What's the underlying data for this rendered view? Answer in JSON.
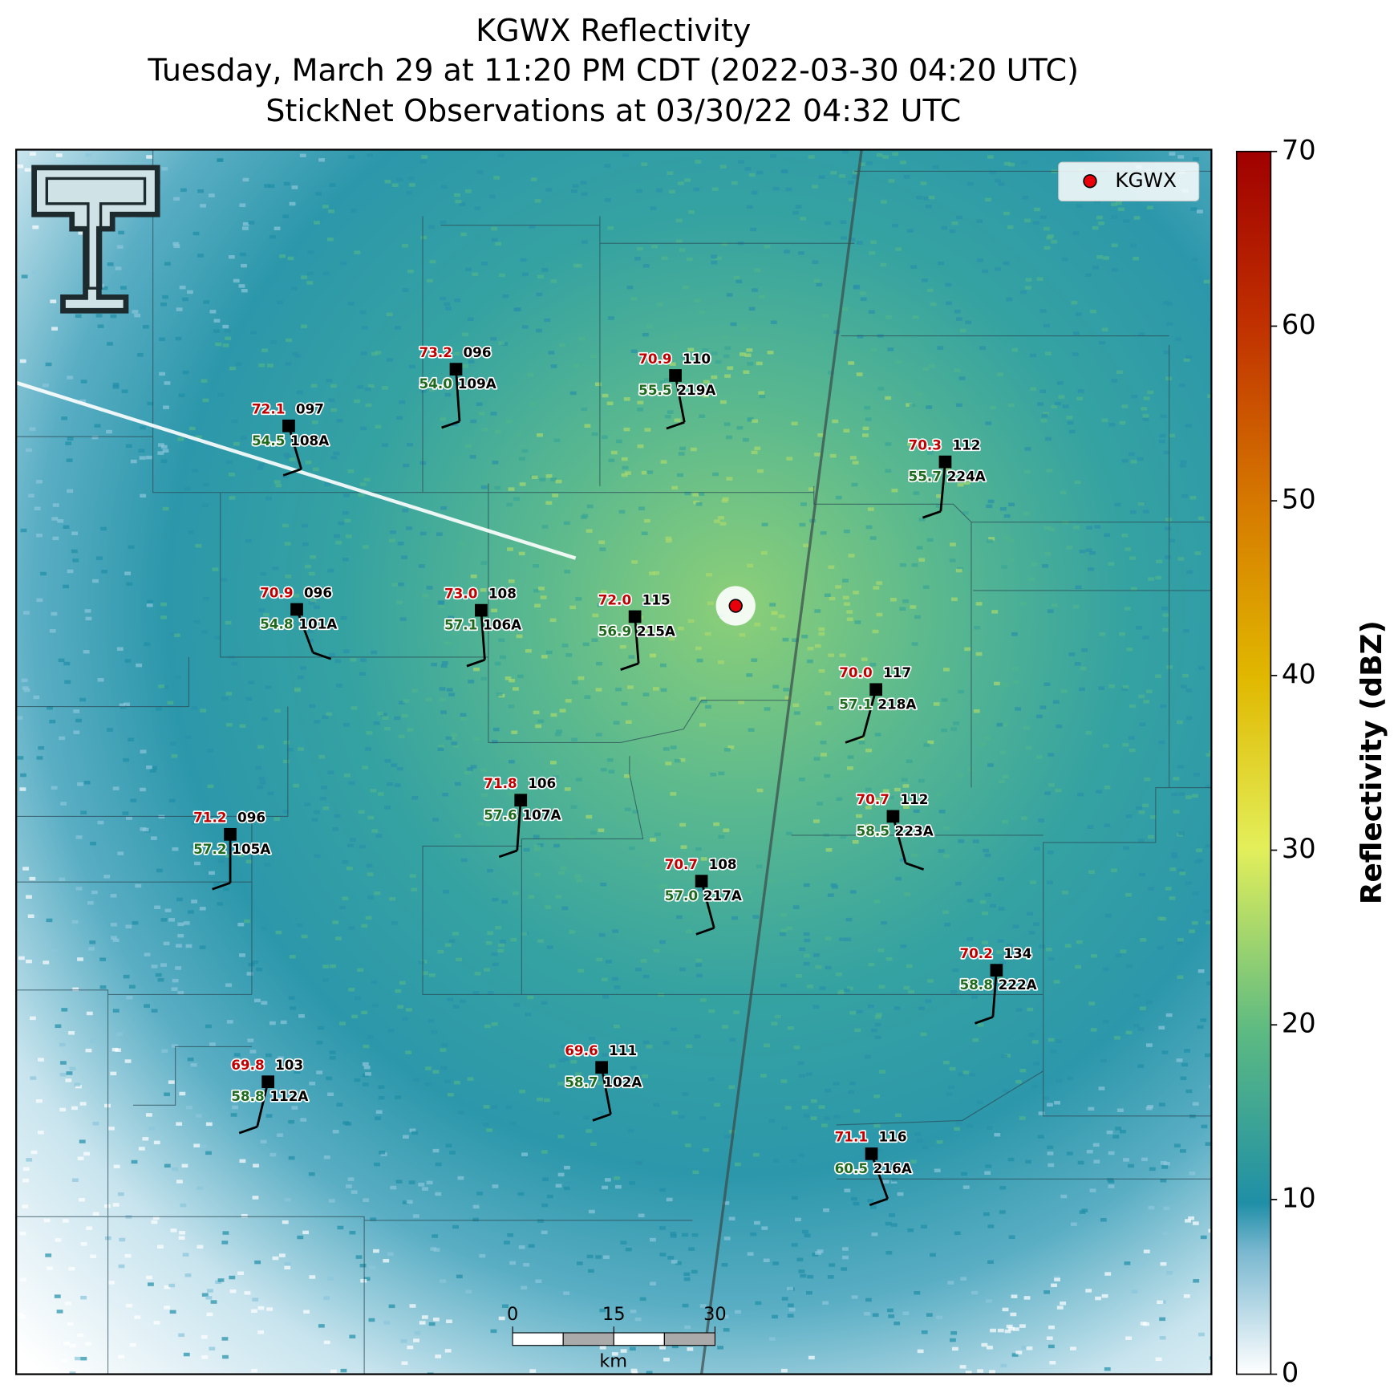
{
  "header": {
    "title": "KGWX Reflectivity",
    "subtitle": "Tuesday, March 29 at 11:20 PM CDT (2022-03-30 04:20 UTC)",
    "subtitle2": "StickNet Observations at 03/30/22 04:32 UTC"
  },
  "legend": {
    "label": "KGWX"
  },
  "colorbar": {
    "label": "Reflectivity (dBZ)",
    "lim": [
      0,
      70
    ],
    "ticks": [
      0,
      10,
      20,
      30,
      40,
      50,
      60,
      70
    ]
  },
  "scale_bar": {
    "ticks": [
      0,
      15,
      30
    ],
    "unit": "km"
  },
  "stations": [
    {
      "temp": "72.1",
      "dew": "54.5",
      "pressure": "097",
      "id": "108A"
    },
    {
      "temp": "73.2",
      "dew": "54.0",
      "pressure": "096",
      "id": "109A"
    },
    {
      "temp": "70.9",
      "dew": "55.5",
      "pressure": "110",
      "id": "219A"
    },
    {
      "temp": "70.3",
      "dew": "55.7",
      "pressure": "112",
      "id": "224A"
    },
    {
      "temp": "70.9",
      "dew": "54.8",
      "pressure": "096",
      "id": "101A"
    },
    {
      "temp": "73.0",
      "dew": "57.1",
      "pressure": "108",
      "id": "106A"
    },
    {
      "temp": "72.0",
      "dew": "56.9",
      "pressure": "115",
      "id": "215A"
    },
    {
      "temp": "70.0",
      "dew": "57.1",
      "pressure": "117",
      "id": "218A"
    },
    {
      "temp": "71.8",
      "dew": "57.6",
      "pressure": "106",
      "id": "107A"
    },
    {
      "temp": "71.2",
      "dew": "57.2",
      "pressure": "096",
      "id": "105A"
    },
    {
      "temp": "70.7",
      "dew": "58.5",
      "pressure": "112",
      "id": "223A"
    },
    {
      "temp": "70.7",
      "dew": "57.0",
      "pressure": "108",
      "id": "217A"
    },
    {
      "temp": "70.2",
      "dew": "58.8",
      "pressure": "134",
      "id": "222A"
    },
    {
      "temp": "69.6",
      "dew": "58.7",
      "pressure": "111",
      "id": "102A"
    },
    {
      "temp": "69.8",
      "dew": "58.8",
      "pressure": "103",
      "id": "112A"
    },
    {
      "temp": "71.1",
      "dew": "60.5",
      "pressure": "116",
      "id": "216A"
    }
  ]
}
